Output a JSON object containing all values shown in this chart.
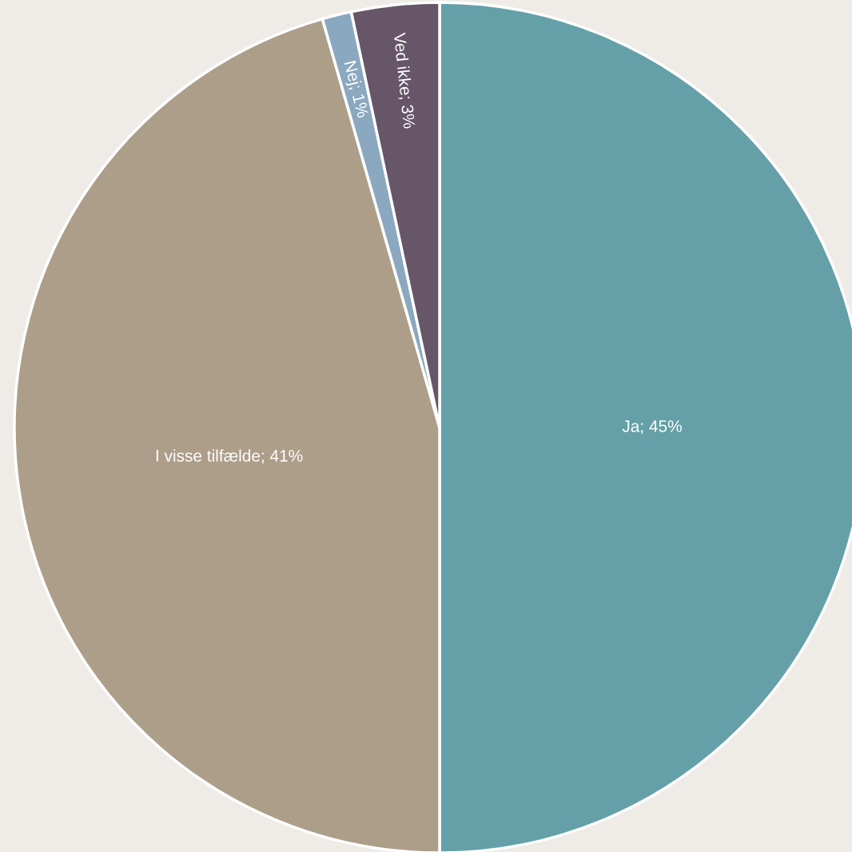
{
  "chart_data": {
    "type": "pie",
    "categories": [
      "Ja",
      "I visse tilfælde",
      "Nej",
      "Ved ikke"
    ],
    "values": [
      45,
      41,
      1,
      3
    ],
    "value_labels": [
      "45%",
      "41%",
      "1%",
      "3%"
    ],
    "colors": [
      "#65a0a8",
      "#ad9e8a",
      "#8aa8bf",
      "#665668"
    ]
  }
}
